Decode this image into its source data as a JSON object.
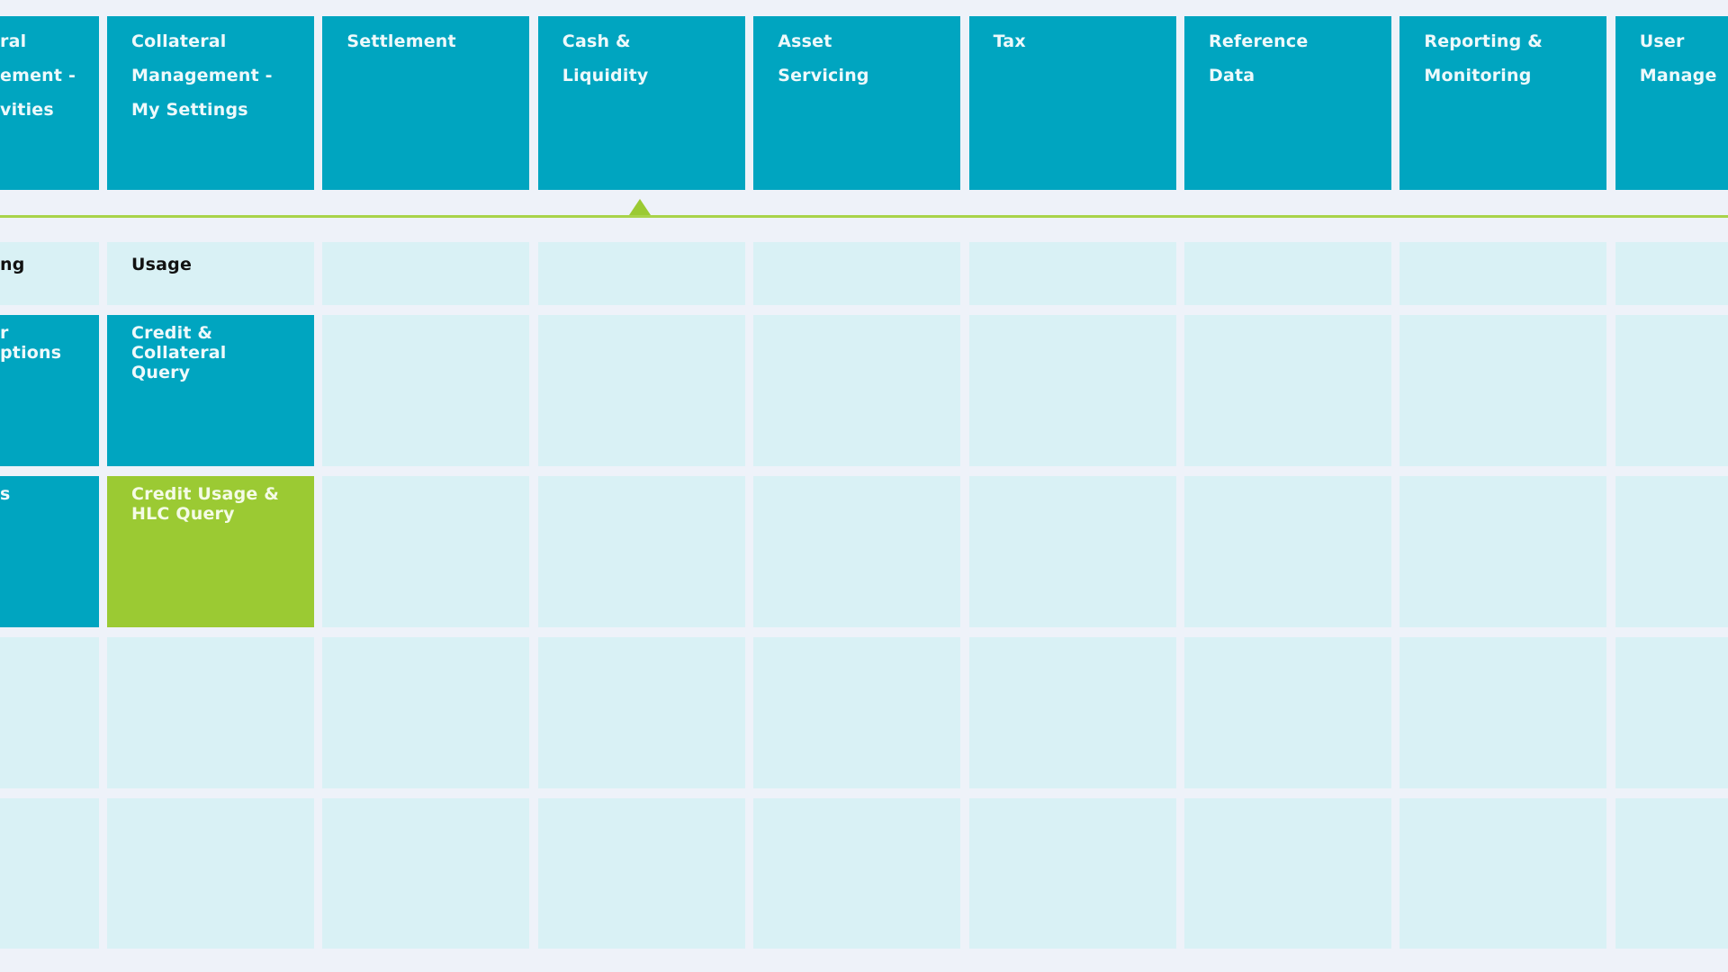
{
  "colors": {
    "tile": "#00a5c0",
    "empty": "#d9f1f5",
    "selected": "#9bca33",
    "indicator": "#a8d34a",
    "background": "#eef2f9"
  },
  "columns": [
    {
      "header": [
        "ral",
        "ement -",
        "vities"
      ],
      "subheader": "ng",
      "tiles": [
        {
          "lines": [
            "r",
            "",
            "ptions"
          ],
          "state": "tile"
        },
        {
          "lines": [
            "s"
          ],
          "state": "tile"
        },
        null,
        null
      ]
    },
    {
      "header": [
        "Collateral",
        "Management -",
        "My Settings"
      ],
      "subheader": "Usage",
      "tiles": [
        {
          "lines": [
            "Credit &",
            "Collateral",
            "Query"
          ],
          "state": "tile"
        },
        {
          "lines": [
            "Credit Usage &",
            "HLC Query"
          ],
          "state": "selected"
        },
        null,
        null
      ]
    },
    {
      "header": [
        "Settlement"
      ],
      "subheader": ""
    },
    {
      "header": [
        "Cash &",
        "Liquidity"
      ],
      "subheader": "",
      "active_indicator": true
    },
    {
      "header": [
        "Asset",
        "Servicing"
      ],
      "subheader": ""
    },
    {
      "header": [
        "Tax"
      ],
      "subheader": ""
    },
    {
      "header": [
        "Reference",
        "Data"
      ],
      "subheader": ""
    },
    {
      "header": [
        "Reporting &",
        "Monitoring"
      ],
      "subheader": ""
    },
    {
      "header": [
        "User",
        "Manage"
      ],
      "subheader": ""
    }
  ]
}
